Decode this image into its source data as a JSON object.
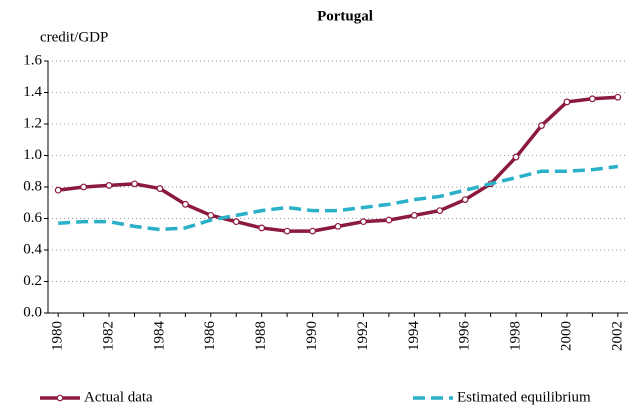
{
  "chart_data": {
    "type": "line",
    "title": "Portugal",
    "y_label": "credit/GDP",
    "x": [
      1980,
      1981,
      1982,
      1983,
      1984,
      1985,
      1986,
      1987,
      1988,
      1989,
      1990,
      1991,
      1992,
      1993,
      1994,
      1995,
      1996,
      1997,
      1998,
      1999,
      2000,
      2001,
      2002
    ],
    "series": [
      {
        "name": "Actual data",
        "color": "#8b1a3c",
        "dash": false,
        "markers": true,
        "values": [
          0.78,
          0.8,
          0.81,
          0.82,
          0.79,
          0.69,
          0.62,
          0.58,
          0.54,
          0.52,
          0.52,
          0.55,
          0.58,
          0.59,
          0.62,
          0.65,
          0.72,
          0.82,
          0.99,
          1.19,
          1.34,
          1.36,
          1.37
        ]
      },
      {
        "name": "Estimated equilibrium",
        "color": "#2ab0c8",
        "dash": true,
        "markers": false,
        "values": [
          0.57,
          0.58,
          0.58,
          0.55,
          0.53,
          0.54,
          0.59,
          0.62,
          0.65,
          0.67,
          0.65,
          0.65,
          0.67,
          0.69,
          0.72,
          0.74,
          0.78,
          0.82,
          0.86,
          0.9,
          0.9,
          0.91,
          0.93
        ]
      }
    ],
    "xlim": [
      1979.6,
      2002.4
    ],
    "xticks": [
      1980,
      1982,
      1984,
      1986,
      1988,
      1990,
      1992,
      1994,
      1996,
      1998,
      2000,
      2002
    ],
    "ylim": [
      0,
      1.6
    ],
    "yticks": [
      {
        "value": 0,
        "label": "0.0"
      },
      0.2,
      0.4,
      0.6,
      0.8,
      {
        "value": 1,
        "label": "1.0"
      },
      1.2,
      1.4,
      1.6
    ],
    "grid": true
  }
}
